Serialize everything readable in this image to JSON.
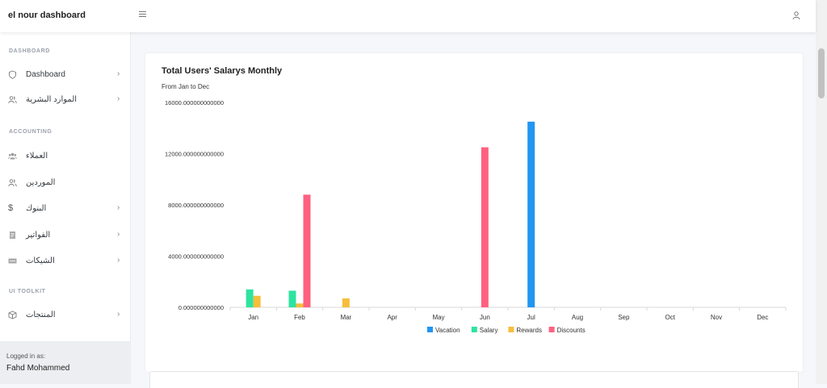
{
  "topbar": {
    "brand": "el nour dashboard",
    "menu_icon": "hamburger-icon",
    "user_icon": "user-icon"
  },
  "sidebar": {
    "sections": [
      {
        "heading": "DASHBOARD"
      },
      {
        "heading": "ACCOUNTING"
      },
      {
        "heading": "UI TOOLKIT"
      }
    ],
    "items": [
      {
        "label": "Dashboard",
        "icon": "shield-icon",
        "has_chevron": true
      },
      {
        "label": "الموارد البشرية",
        "icon": "users-icon",
        "has_chevron": true
      },
      {
        "label": "العملاء",
        "icon": "users-group-icon",
        "has_chevron": false
      },
      {
        "label": "الموردين",
        "icon": "users-icon",
        "has_chevron": false
      },
      {
        "label": "البنوك",
        "icon": "dollar-icon",
        "has_chevron": true
      },
      {
        "label": "الفواتير",
        "icon": "invoice-icon",
        "has_chevron": true
      },
      {
        "label": "الشيكات",
        "icon": "cheque-icon",
        "has_chevron": true
      },
      {
        "label": "المنتجات",
        "icon": "box-icon",
        "has_chevron": true
      }
    ],
    "footer": {
      "logged_in_label": "Logged in as:",
      "user_name": "Fahd Mohammed"
    }
  },
  "card": {
    "title": "Total Users' Salarys Monthly",
    "subtitle": "From Jan to Dec"
  },
  "chart_data": {
    "type": "bar",
    "categories": [
      "Jan",
      "Feb",
      "Mar",
      "Apr",
      "May",
      "Jun",
      "Jul",
      "Aug",
      "Sep",
      "Oct",
      "Nov",
      "Dec"
    ],
    "series": [
      {
        "name": "Vacation",
        "color": "#2196f3",
        "values": [
          0,
          0,
          0,
          0,
          0,
          0,
          14500,
          0,
          0,
          0,
          0,
          0
        ]
      },
      {
        "name": "Salary",
        "color": "#2ee3a0",
        "values": [
          1400,
          1300,
          0,
          0,
          0,
          0,
          0,
          0,
          0,
          0,
          0,
          0
        ]
      },
      {
        "name": "Rewards",
        "color": "#f6be3b",
        "values": [
          900,
          300,
          700,
          0,
          0,
          0,
          0,
          0,
          0,
          0,
          0,
          0
        ]
      },
      {
        "name": "Discounts",
        "color": "#ff6180",
        "values": [
          0,
          8800,
          0,
          0,
          0,
          12500,
          0,
          0,
          0,
          0,
          0,
          0
        ]
      }
    ],
    "ylim": [
      0,
      16000
    ],
    "yticks": [
      0,
      4000,
      8000,
      12000,
      16000
    ],
    "ytick_labels": [
      "0.000000000000",
      "4000.000000000000",
      "8000.000000000000",
      "12000.000000000000",
      "16000.000000000000"
    ],
    "legend_position": "bottom",
    "grid": false
  }
}
